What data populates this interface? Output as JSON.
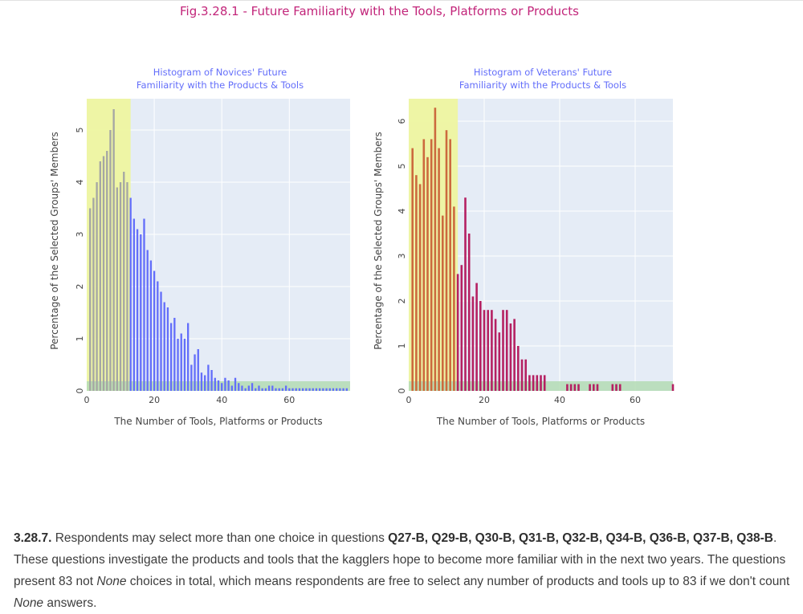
{
  "figure": {
    "title": "Fig.3.28.1 - Future Familiarity with the Tools, Platforms or Products"
  },
  "colors": {
    "novice": "#636efa",
    "novice_highlight": "#a5a6a4",
    "veteran": "#b52062",
    "veteran_highlight": "#cc6a3e",
    "band_yellow": "#eef5a0",
    "band_green": "#b4dcb4",
    "plot_bg": "#e5ecf6",
    "title": "#c2257a"
  },
  "chart_data": [
    {
      "type": "bar",
      "title": "Histogram of Novices' Future Familiarity with the Products & Tools",
      "title_lines": [
        "Histogram of Novices' Future",
        "Familiarity with the Products & Tools"
      ],
      "xlabel": "The Number of Tools, Platforms or Products",
      "ylabel": "Percentage of the Selected Groups' Members",
      "xlim": [
        0,
        78
      ],
      "ylim": [
        0,
        5.6
      ],
      "xticks": [
        0,
        20,
        40,
        60
      ],
      "yticks": [
        0,
        1,
        2,
        3,
        4,
        5
      ],
      "highlight_range": [
        0,
        13
      ],
      "x": [
        1,
        2,
        3,
        4,
        5,
        6,
        7,
        8,
        9,
        10,
        11,
        12,
        13,
        14,
        15,
        16,
        17,
        18,
        19,
        20,
        21,
        22,
        23,
        24,
        25,
        26,
        27,
        28,
        29,
        30,
        31,
        32,
        33,
        34,
        35,
        36,
        37,
        38,
        39,
        40,
        41,
        42,
        43,
        44,
        45,
        46,
        47,
        48,
        49,
        50,
        51,
        52,
        53,
        54,
        55,
        56,
        57,
        58,
        59,
        60,
        61,
        62,
        63,
        64,
        65,
        66,
        67,
        68,
        69,
        70,
        71,
        72,
        73,
        74,
        75,
        76,
        77
      ],
      "values": [
        3.5,
        3.7,
        4.0,
        4.4,
        4.5,
        4.6,
        5.0,
        5.4,
        3.9,
        4.0,
        4.2,
        4.0,
        3.7,
        3.3,
        3.1,
        3.0,
        3.3,
        2.7,
        2.5,
        2.3,
        2.1,
        1.9,
        1.7,
        1.6,
        1.3,
        1.4,
        1.0,
        1.1,
        1.0,
        1.3,
        0.5,
        0.7,
        0.8,
        0.35,
        0.3,
        0.5,
        0.4,
        0.25,
        0.2,
        0.15,
        0.25,
        0.2,
        0.1,
        0.25,
        0.15,
        0.1,
        0.05,
        0.1,
        0.15,
        0.05,
        0.1,
        0.05,
        0.05,
        0.1,
        0.1,
        0.05,
        0.05,
        0.05,
        0.1,
        0.05,
        0.05,
        0.05,
        0.05,
        0.05,
        0.05,
        0.05,
        0.05,
        0.05,
        0.05,
        0.05,
        0.05,
        0.05,
        0.05,
        0.05,
        0.05,
        0.05,
        0.05
      ]
    },
    {
      "type": "bar",
      "title": "Histogram of Veterans' Future Familiarity with the Products & Tools",
      "title_lines": [
        "Histogram of Veterans' Future",
        "Familiarity with the Products & Tools"
      ],
      "xlabel": "The Number of Tools, Platforms or Products",
      "ylabel": "Percentage of the Selected Groups' Members",
      "xlim": [
        0,
        70
      ],
      "ylim": [
        0,
        6.5
      ],
      "xticks": [
        0,
        20,
        40,
        60
      ],
      "yticks": [
        0,
        1,
        2,
        3,
        4,
        5,
        6
      ],
      "highlight_range": [
        0,
        13
      ],
      "x": [
        1,
        2,
        3,
        4,
        5,
        6,
        7,
        8,
        9,
        10,
        11,
        12,
        13,
        14,
        15,
        16,
        17,
        18,
        19,
        20,
        21,
        22,
        23,
        24,
        25,
        26,
        27,
        28,
        29,
        30,
        31,
        32,
        33,
        34,
        35,
        36,
        42,
        43,
        44,
        45,
        48,
        49,
        50,
        54,
        55,
        56,
        70
      ],
      "values": [
        5.4,
        4.8,
        4.6,
        5.6,
        5.2,
        5.6,
        6.3,
        5.4,
        3.9,
        5.8,
        5.6,
        4.1,
        2.6,
        2.8,
        4.3,
        3.5,
        2.1,
        2.4,
        2.0,
        1.8,
        1.8,
        1.8,
        1.6,
        1.3,
        1.8,
        1.8,
        1.5,
        1.6,
        1.0,
        0.7,
        0.7,
        0.35,
        0.35,
        0.35,
        0.35,
        0.35,
        0.15,
        0.15,
        0.15,
        0.15,
        0.15,
        0.15,
        0.15,
        0.15,
        0.15,
        0.15,
        0.15
      ]
    }
  ],
  "paragraph": {
    "number": "3.28.7.",
    "text1": " Respondents may select more than one choice in questions ",
    "questions": "Q27-B, Q29-B, Q30-B, Q31-B, Q32-B, Q34-B, Q36-B, Q37-B, Q38-B",
    "text2": ". These questions investigate the products and tools that the kagglers hope to become more familiar with in the next two years. The questions present 83 not ",
    "em": "None",
    "text3": " choices in total, which means respondents are free to select any number of products and tools up to 83 if we don't count ",
    "em2": "None",
    "text4": " answers."
  }
}
